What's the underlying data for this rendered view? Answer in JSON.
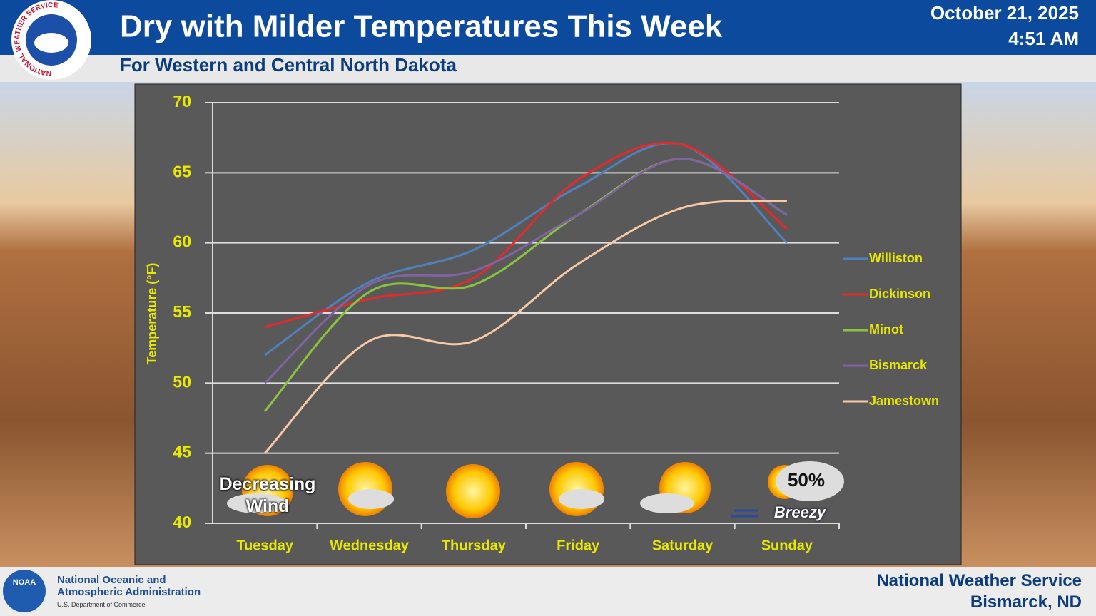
{
  "header": {
    "title": "Dry with Milder Temperatures This Week",
    "subtitle": "For Western and Central North Dakota",
    "date": "October 21, 2025",
    "time": "4:51 AM",
    "logo_text": "NATIONAL WEATHER SERVICE"
  },
  "footer": {
    "noaa_logo": "NOAA",
    "agency_line1": "National Oceanic and",
    "agency_line2": "Atmospheric Administration",
    "department": "U.S. Department of Commerce",
    "office_line1": "National Weather Service",
    "office_line2": "Bismarck, ND"
  },
  "chart_data": {
    "type": "line",
    "smooth": true,
    "y_label": "Temperature (°F)",
    "categories": [
      "Tuesday",
      "Wednesday",
      "Thursday",
      "Friday",
      "Saturday",
      "Sunday"
    ],
    "series": [
      {
        "name": "Williston",
        "color": "#4f81bd",
        "values": [
          52,
          57.2,
          59.5,
          64,
          67,
          60
        ]
      },
      {
        "name": "Dickinson",
        "color": "#e8282a",
        "values": [
          54,
          56,
          57.5,
          64.5,
          67,
          61
        ]
      },
      {
        "name": "Minot",
        "color": "#8ac43f",
        "values": [
          48,
          56.5,
          57,
          62,
          66,
          62
        ]
      },
      {
        "name": "Bismarck",
        "color": "#8064a2",
        "values": [
          50,
          57,
          58,
          62,
          66,
          62
        ]
      },
      {
        "name": "Jamestown",
        "color": "#f9c9a5",
        "values": [
          45,
          53,
          53,
          58.5,
          62.5,
          63
        ]
      }
    ],
    "ylim": [
      40,
      70
    ],
    "yticks": [
      40,
      45,
      50,
      55,
      60,
      65,
      70
    ],
    "grid": true,
    "legend": "right",
    "annotations": [
      "Decreasing Wind",
      "50%",
      "Breezy"
    ]
  }
}
